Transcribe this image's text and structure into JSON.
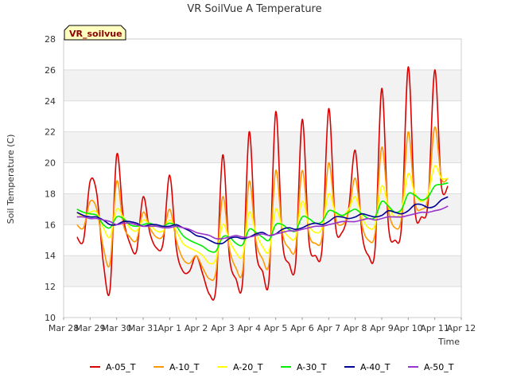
{
  "chart_data": {
    "type": "line",
    "title": "VR SoilVue A Temperature",
    "xlabel": "Time",
    "ylabel": "Soil Temperature (C)",
    "ylim": [
      10,
      28
    ],
    "xlim": [
      "2024-03-28",
      "2024-04-12"
    ],
    "y_ticks": [
      10,
      12,
      14,
      16,
      18,
      20,
      22,
      24,
      26,
      28
    ],
    "x_ticks": [
      "Mar 28",
      "Mar 29",
      "Mar 30",
      "Mar 31",
      "Apr 1",
      "Apr 2",
      "Apr 3",
      "Apr 4",
      "Apr 5",
      "Apr 6",
      "Apr 7",
      "Apr 8",
      "Apr 9",
      "Apr 10",
      "Apr 11",
      "Apr 12"
    ],
    "tag": "VR_soilvue",
    "grid": true,
    "legend_position": "bottom",
    "x": [
      "Mar 28 12:00",
      "Mar 28 18:00",
      "Mar 29 00:00",
      "Mar 29 06:00",
      "Mar 29 12:00",
      "Mar 29 18:00",
      "Mar 30 00:00",
      "Mar 30 06:00",
      "Mar 30 12:00",
      "Mar 30 18:00",
      "Mar 31 00:00",
      "Mar 31 06:00",
      "Mar 31 12:00",
      "Mar 31 18:00",
      "Apr 1 00:00",
      "Apr 1 06:00",
      "Apr 1 12:00",
      "Apr 1 18:00",
      "Apr 2 00:00",
      "Apr 2 06:00",
      "Apr 2 12:00",
      "Apr 2 18:00",
      "Apr 3 00:00",
      "Apr 3 06:00",
      "Apr 3 12:00",
      "Apr 3 18:00",
      "Apr 4 00:00",
      "Apr 4 06:00",
      "Apr 4 12:00",
      "Apr 4 18:00",
      "Apr 5 00:00",
      "Apr 5 06:00",
      "Apr 5 12:00",
      "Apr 5 18:00",
      "Apr 6 00:00",
      "Apr 6 06:00",
      "Apr 6 12:00",
      "Apr 6 18:00",
      "Apr 7 00:00",
      "Apr 7 06:00",
      "Apr 7 12:00",
      "Apr 7 18:00",
      "Apr 8 00:00",
      "Apr 8 06:00",
      "Apr 8 12:00",
      "Apr 8 18:00",
      "Apr 9 00:00",
      "Apr 9 06:00",
      "Apr 9 12:00",
      "Apr 9 18:00",
      "Apr 10 00:00",
      "Apr 10 06:00",
      "Apr 10 12:00",
      "Apr 10 18:00",
      "Apr 11 00:00",
      "Apr 11 06:00",
      "Apr 11 12:00"
    ],
    "series": [
      {
        "name": "A-05_T",
        "color": "#dd0000",
        "values": [
          15.2,
          15.0,
          18.8,
          18.0,
          13.5,
          11.8,
          20.5,
          16.5,
          14.8,
          14.3,
          17.8,
          15.5,
          14.5,
          14.8,
          19.2,
          14.5,
          13.0,
          13.0,
          14.0,
          12.8,
          11.5,
          12.0,
          20.5,
          14.0,
          12.5,
          12.3,
          22.0,
          14.5,
          13.0,
          12.5,
          23.3,
          15.0,
          13.5,
          13.5,
          22.8,
          15.0,
          14.0,
          14.5,
          23.5,
          16.0,
          15.5,
          17.0,
          20.8,
          15.5,
          14.0,
          14.5,
          24.8,
          16.0,
          15.0,
          16.0,
          26.2,
          17.0,
          16.5,
          17.5,
          26.0,
          18.5,
          18.5
        ]
      },
      {
        "name": "A-10_T",
        "color": "#ff9900",
        "values": [
          16.0,
          15.8,
          17.5,
          17.0,
          14.5,
          13.5,
          18.8,
          16.0,
          15.2,
          15.0,
          16.8,
          15.8,
          15.2,
          15.3,
          17.0,
          15.0,
          13.8,
          13.5,
          14.0,
          13.2,
          12.5,
          13.0,
          17.8,
          14.5,
          13.2,
          13.0,
          18.8,
          15.0,
          13.8,
          13.5,
          19.5,
          15.5,
          14.5,
          14.5,
          19.5,
          15.5,
          14.8,
          15.2,
          20.0,
          16.5,
          16.0,
          16.8,
          19.0,
          16.0,
          15.0,
          15.5,
          21.0,
          17.0,
          15.8,
          16.5,
          22.0,
          17.5,
          17.0,
          17.8,
          22.3,
          19.0,
          19.0
        ]
      },
      {
        "name": "A-20_T",
        "color": "#ffff00",
        "values": [
          16.8,
          16.5,
          16.8,
          16.8,
          15.8,
          15.2,
          17.0,
          16.5,
          15.8,
          15.6,
          16.3,
          16.0,
          15.6,
          15.6,
          16.3,
          15.6,
          14.8,
          14.5,
          14.3,
          14.0,
          13.5,
          13.8,
          16.0,
          15.0,
          14.2,
          14.0,
          16.8,
          15.5,
          14.6,
          14.3,
          17.0,
          15.8,
          15.2,
          15.2,
          17.5,
          16.0,
          15.5,
          15.8,
          18.0,
          16.8,
          16.5,
          17.0,
          17.8,
          16.5,
          15.8,
          16.0,
          18.5,
          17.2,
          16.5,
          17.0,
          19.3,
          18.0,
          17.5,
          18.0,
          19.8,
          19.0,
          19.0
        ]
      },
      {
        "name": "A-30_T",
        "color": "#00ee00",
        "values": [
          17.0,
          16.8,
          16.7,
          16.6,
          16.0,
          15.8,
          16.5,
          16.4,
          16.0,
          15.9,
          16.0,
          16.1,
          15.9,
          15.9,
          16.1,
          15.9,
          15.3,
          15.0,
          14.8,
          14.6,
          14.3,
          14.3,
          15.2,
          15.2,
          14.8,
          14.7,
          15.7,
          15.5,
          15.2,
          15.0,
          16.0,
          16.0,
          15.7,
          15.6,
          16.5,
          16.4,
          16.1,
          16.2,
          16.9,
          16.8,
          16.6,
          16.8,
          17.0,
          16.7,
          16.4,
          16.5,
          17.5,
          17.2,
          16.8,
          17.0,
          18.0,
          17.9,
          17.6,
          17.8,
          18.5,
          18.6,
          18.7
        ]
      },
      {
        "name": "A-40_T",
        "color": "#000099",
        "values": [
          16.8,
          16.6,
          16.5,
          16.5,
          16.3,
          16.0,
          16.0,
          16.2,
          16.2,
          16.1,
          15.9,
          16.0,
          16.0,
          15.9,
          15.9,
          16.0,
          15.8,
          15.6,
          15.3,
          15.2,
          15.0,
          14.8,
          14.8,
          15.1,
          15.2,
          15.1,
          15.2,
          15.4,
          15.5,
          15.3,
          15.4,
          15.7,
          15.8,
          15.7,
          15.8,
          16.0,
          16.1,
          16.0,
          16.2,
          16.5,
          16.5,
          16.4,
          16.5,
          16.7,
          16.6,
          16.5,
          16.6,
          16.9,
          16.8,
          16.7,
          16.9,
          17.3,
          17.3,
          17.1,
          17.2,
          17.6,
          17.8
        ]
      },
      {
        "name": "A-50_T",
        "color": "#9933cc",
        "values": [
          16.5,
          16.5,
          16.4,
          16.4,
          16.3,
          16.2,
          16.0,
          16.1,
          16.1,
          16.0,
          15.9,
          15.9,
          15.9,
          15.8,
          15.8,
          15.9,
          15.8,
          15.7,
          15.5,
          15.4,
          15.3,
          15.1,
          15.1,
          15.2,
          15.3,
          15.2,
          15.2,
          15.3,
          15.4,
          15.3,
          15.4,
          15.5,
          15.6,
          15.6,
          15.7,
          15.8,
          15.9,
          15.9,
          16.0,
          16.1,
          16.2,
          16.2,
          16.2,
          16.3,
          16.4,
          16.3,
          16.4,
          16.5,
          16.5,
          16.5,
          16.6,
          16.7,
          16.8,
          16.8,
          16.9,
          17.0,
          17.2
        ]
      }
    ]
  }
}
